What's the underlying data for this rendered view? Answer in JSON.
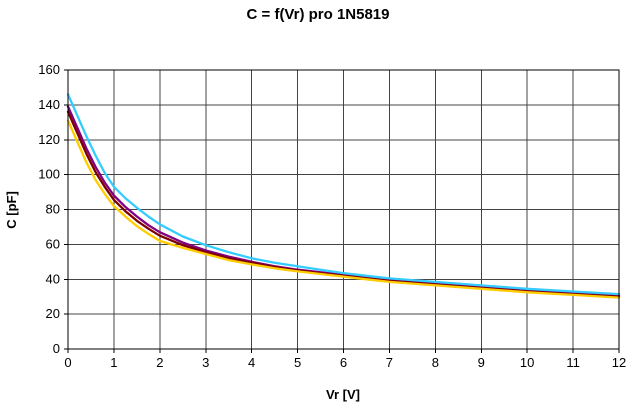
{
  "chart_data": {
    "type": "line",
    "title": "C = f(Vr) pro 1N5819",
    "xlabel": "Vr [V]",
    "ylabel": "C [pF]",
    "xlim": [
      0,
      12
    ],
    "ylim": [
      0,
      160
    ],
    "x_ticks": [
      0,
      1,
      2,
      3,
      4,
      5,
      6,
      7,
      8,
      9,
      10,
      11,
      12
    ],
    "y_ticks": [
      0,
      20,
      40,
      60,
      80,
      100,
      120,
      140,
      160
    ],
    "grid": "both",
    "legend": "none",
    "x": [
      0,
      0.2,
      0.4,
      0.6,
      0.8,
      1,
      1.25,
      1.5,
      1.75,
      2,
      2.5,
      3,
      3.5,
      4,
      4.5,
      5,
      5.5,
      6,
      6.5,
      7,
      7.5,
      8,
      9,
      10,
      11,
      12
    ],
    "series": [
      {
        "name": "curve-purple",
        "color": "#800080",
        "values": [
          139,
          127,
          115,
          104.5,
          95.5,
          88,
          81.5,
          76,
          71,
          67,
          61,
          56.5,
          53,
          50,
          47.5,
          45.5,
          44,
          42.5,
          41,
          39.5,
          38.5,
          37.5,
          35.5,
          33.5,
          32,
          30.5
        ]
      },
      {
        "name": "curve-dark-red",
        "color": "#800000",
        "values": [
          136,
          124,
          112,
          101.5,
          93,
          85.5,
          79,
          73.5,
          69,
          65,
          59.5,
          55.5,
          52,
          49.5,
          47,
          45,
          43.5,
          42,
          40.5,
          39,
          38,
          37,
          35,
          33,
          31.5,
          30
        ]
      },
      {
        "name": "curve-yellow",
        "color": "#FFCC00",
        "values": [
          131,
          119,
          107,
          97,
          89,
          82,
          76,
          70.5,
          66,
          62,
          58,
          54.5,
          51,
          48.5,
          46.3,
          44.5,
          43,
          41.5,
          40,
          38.5,
          37.5,
          36.5,
          34.5,
          32.5,
          31,
          29.5
        ]
      },
      {
        "name": "curve-cyan",
        "color": "#33CCFF",
        "values": [
          146,
          134,
          122,
          111,
          101,
          93,
          86.5,
          81,
          76,
          71.5,
          64.5,
          59.5,
          55.5,
          52,
          49.5,
          47.5,
          45.5,
          43.5,
          42,
          40.5,
          39.5,
          38.5,
          36.5,
          34.5,
          33,
          31.5
        ]
      }
    ]
  }
}
